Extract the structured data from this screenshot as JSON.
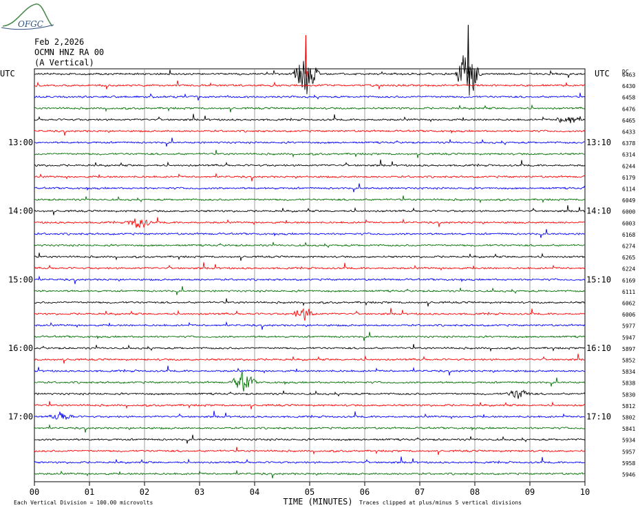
{
  "logo": {
    "text": "OFGC"
  },
  "header": {
    "date": "Feb 2,2026",
    "station": "OCMN HNZ RA 00",
    "component": "(A Vertical)"
  },
  "chart_data": {
    "type": "line",
    "title": "",
    "xlabel": "TIME (MINUTES)",
    "ylabel": "",
    "xlim": [
      0,
      10
    ],
    "x_ticks": [
      "00",
      "01",
      "02",
      "03",
      "04",
      "05",
      "06",
      "07",
      "08",
      "09",
      "10"
    ],
    "left_axis_title": "UTC",
    "right_axis_title": "UTC",
    "right_extra_title": "DC",
    "left_time_labels": [
      {
        "row": 6,
        "label": "13:00"
      },
      {
        "row": 12,
        "label": "14:00"
      },
      {
        "row": 18,
        "label": "15:00"
      },
      {
        "row": 24,
        "label": "16:00"
      },
      {
        "row": 30,
        "label": "17:00"
      }
    ],
    "right_time_labels": [
      {
        "row": 6,
        "label": "13:10"
      },
      {
        "row": 12,
        "label": "14:10"
      },
      {
        "row": 18,
        "label": "15:10"
      },
      {
        "row": 24,
        "label": "16:10"
      },
      {
        "row": 30,
        "label": "17:10"
      }
    ],
    "trace_colors": [
      "#000000",
      "#ff0000",
      "#0000ff",
      "#007000"
    ],
    "dc_offsets": [
      "6463",
      "6430",
      "6458",
      "6476",
      "6465",
      "6433",
      "6378",
      "6314",
      "6244",
      "6179",
      "6114",
      "6049",
      "6000",
      "6003",
      "6168",
      "6274",
      "6265",
      "6224",
      "6169",
      "6111",
      "6062",
      "6006",
      "5977",
      "5947",
      "5897",
      "5852",
      "5834",
      "5838",
      "5830",
      "5812",
      "5802",
      "5841",
      "5934",
      "5957",
      "5958",
      "5946"
    ],
    "events": [
      {
        "row": 0,
        "minute": 4.93,
        "amplitude": 3.4,
        "note": "large red spike"
      },
      {
        "row": 0,
        "minute": 7.88,
        "amplitude": 4.3,
        "note": "large black spike"
      },
      {
        "row": 27,
        "minute": 3.8,
        "amplitude": 1.5
      },
      {
        "row": 21,
        "minute": 4.9,
        "amplitude": 0.9
      },
      {
        "row": 28,
        "minute": 8.8,
        "amplitude": 0.8
      },
      {
        "row": 30,
        "minute": 0.5,
        "amplitude": 0.7
      },
      {
        "row": 13,
        "minute": 1.9,
        "amplitude": 0.9
      },
      {
        "row": 4,
        "minute": 9.7,
        "amplitude": 0.8
      }
    ],
    "footer_left": "Each Vertical Division =  100.00 microvolts",
    "footer_right": "Traces clipped at plus/minus 5 vertical divisions",
    "grid": true
  }
}
